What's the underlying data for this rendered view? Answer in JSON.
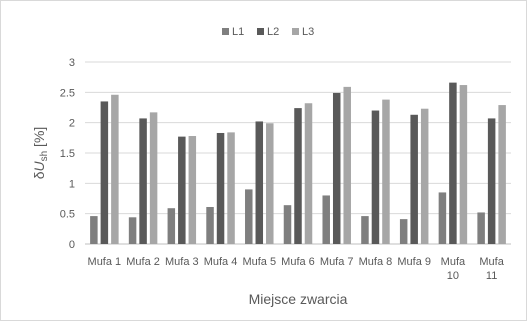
{
  "chart_data": {
    "type": "bar",
    "title": "",
    "xlabel": "Miejsce zwarcia",
    "ylabel": "δU_sh [%]",
    "ylabel_parts": {
      "prefix": "δ",
      "var": "U",
      "sub": "sh",
      "unit": " [%]"
    },
    "ylim": [
      0,
      3
    ],
    "yticks": [
      "0",
      "0.5",
      "1",
      "1.5",
      "2",
      "2.5",
      "3"
    ],
    "grid": true,
    "legend_position": "top",
    "categories": [
      [
        "Mufa 1"
      ],
      [
        "Mufa 2"
      ],
      [
        "Mufa 3"
      ],
      [
        "Mufa 4"
      ],
      [
        "Mufa 5"
      ],
      [
        "Mufa 6"
      ],
      [
        "Mufa 7"
      ],
      [
        "Mufa 8"
      ],
      [
        "Mufa 9"
      ],
      [
        "Mufa",
        "10"
      ],
      [
        "Mufa",
        "11"
      ]
    ],
    "series": [
      {
        "name": "L1",
        "color": "#7f7f7f",
        "values": [
          0.46,
          0.44,
          0.59,
          0.61,
          0.9,
          0.64,
          0.8,
          0.46,
          0.41,
          0.85,
          0.52
        ]
      },
      {
        "name": "L2",
        "color": "#595959",
        "values": [
          2.35,
          2.07,
          1.77,
          1.83,
          2.02,
          2.24,
          2.49,
          2.2,
          2.13,
          2.66,
          2.07
        ]
      },
      {
        "name": "L3",
        "color": "#a6a6a6",
        "values": [
          2.46,
          2.17,
          1.78,
          1.84,
          1.99,
          2.32,
          2.59,
          2.38,
          2.23,
          2.62,
          2.29
        ]
      }
    ]
  }
}
